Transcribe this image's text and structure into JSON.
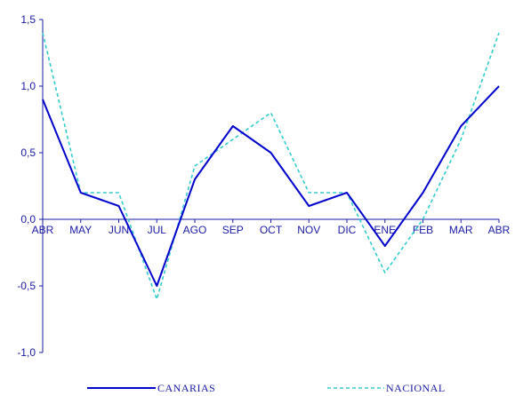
{
  "chart_data": {
    "type": "line",
    "categories": [
      "ABR",
      "MAY",
      "JUN",
      "JUL",
      "AGO",
      "SEP",
      "OCT",
      "NOV",
      "DIC",
      "ENE",
      "FEB",
      "MAR",
      "ABR"
    ],
    "series": [
      {
        "name": "CANARIAS",
        "color": "#0000cc",
        "style": "solid",
        "values": [
          0.9,
          0.2,
          0.1,
          -0.5,
          0.3,
          0.7,
          0.5,
          0.1,
          0.2,
          -0.2,
          0.2,
          0.7,
          1.0
        ]
      },
      {
        "name": "NACIONAL",
        "color": "#33cccc",
        "style": "dashed",
        "values": [
          1.4,
          0.2,
          0.2,
          -0.6,
          0.4,
          0.6,
          0.8,
          0.2,
          0.2,
          -0.4,
          0.0,
          0.6,
          1.4
        ]
      }
    ],
    "ylim": [
      -1.0,
      1.5
    ],
    "yticks": [
      "1,5",
      "1,0",
      "0,5",
      "0,0",
      "-0,5",
      "-1,0"
    ],
    "ytick_values": [
      1.5,
      1.0,
      0.5,
      0.0,
      -0.5,
      -1.0
    ],
    "grid": false,
    "legend_position": "bottom"
  }
}
